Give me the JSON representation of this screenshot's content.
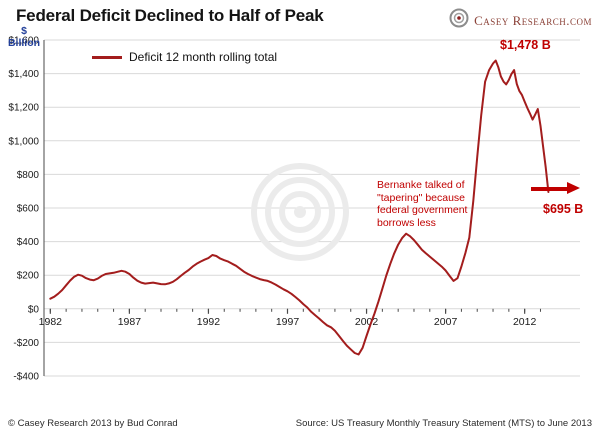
{
  "header": {
    "title": "Federal Deficit Declined to Half of Peak",
    "brand": "Casey Research.com"
  },
  "y_axis_unit": "$\nBillion",
  "legend": {
    "label": "Deficit 12 month rolling total"
  },
  "annotations": {
    "peak": "$1,478 B",
    "current": "$695 B",
    "note": "Bernanke talked of\n\"tapering\" because\nfederal government\nborrows less"
  },
  "footer": {
    "left": "© Casey Research 2013 by Bud Conrad",
    "right": "Source: US Treasury Monthly Treasury Statement (MTS) to June 2013"
  },
  "colors": {
    "line": "#a31d1d",
    "annotation": "#c00000",
    "grid": "#d9d9d9",
    "axis": "#4a4a4a",
    "unit": "#23409a",
    "brand": "#8b4238",
    "watermark": "#ebebeb"
  },
  "chart_data": {
    "type": "line",
    "title": "Federal Deficit Declined to Half of Peak",
    "series_name": "Deficit 12 month rolling total",
    "ylabel": "$ Billion",
    "xlabel": "",
    "xlim": [
      1981.6,
      2015.5
    ],
    "ylim": [
      -400,
      1600
    ],
    "grid": "horizontal",
    "legend_position": "top-left-inside",
    "y_ticks": [
      {
        "v": 1600,
        "label": "$1,600"
      },
      {
        "v": 1400,
        "label": "$1,400"
      },
      {
        "v": 1200,
        "label": "$1,200"
      },
      {
        "v": 1000,
        "label": "$1,000"
      },
      {
        "v": 800,
        "label": "$800"
      },
      {
        "v": 600,
        "label": "$600"
      },
      {
        "v": 400,
        "label": "$400"
      },
      {
        "v": 200,
        "label": "$200"
      },
      {
        "v": 0,
        "label": "$0"
      },
      {
        "v": -200,
        "label": "-$200"
      },
      {
        "v": -400,
        "label": "-$400"
      }
    ],
    "x_ticks": [
      {
        "v": 1982,
        "label": "1982"
      },
      {
        "v": 1987,
        "label": "1987"
      },
      {
        "v": 1992,
        "label": "1992"
      },
      {
        "v": 1997,
        "label": "1997"
      },
      {
        "v": 2002,
        "label": "2002"
      },
      {
        "v": 2007,
        "label": "2007"
      },
      {
        "v": 2012,
        "label": "2012"
      }
    ],
    "peak_point": {
      "x": 2010.17,
      "value": 1478
    },
    "last_point": {
      "x": 2013.5,
      "value": 695
    },
    "points": [
      [
        1982,
        60
      ],
      [
        1982.25,
        72
      ],
      [
        1982.5,
        90
      ],
      [
        1982.75,
        112
      ],
      [
        1983,
        140
      ],
      [
        1983.25,
        168
      ],
      [
        1983.5,
        190
      ],
      [
        1983.75,
        203
      ],
      [
        1984,
        197
      ],
      [
        1984.25,
        183
      ],
      [
        1984.5,
        174
      ],
      [
        1984.75,
        170
      ],
      [
        1985,
        180
      ],
      [
        1985.25,
        196
      ],
      [
        1985.5,
        207
      ],
      [
        1985.75,
        211
      ],
      [
        1986,
        214
      ],
      [
        1986.25,
        220
      ],
      [
        1986.5,
        226
      ],
      [
        1986.75,
        221
      ],
      [
        1987,
        207
      ],
      [
        1987.25,
        186
      ],
      [
        1987.5,
        167
      ],
      [
        1987.75,
        156
      ],
      [
        1988,
        150
      ],
      [
        1988.25,
        153
      ],
      [
        1988.5,
        156
      ],
      [
        1988.75,
        151
      ],
      [
        1989,
        147
      ],
      [
        1989.25,
        146
      ],
      [
        1989.5,
        151
      ],
      [
        1989.75,
        161
      ],
      [
        1990,
        176
      ],
      [
        1990.25,
        196
      ],
      [
        1990.5,
        214
      ],
      [
        1990.75,
        231
      ],
      [
        1991,
        251
      ],
      [
        1991.25,
        268
      ],
      [
        1991.5,
        281
      ],
      [
        1991.75,
        292
      ],
      [
        1992,
        302
      ],
      [
        1992.25,
        320
      ],
      [
        1992.5,
        314
      ],
      [
        1992.75,
        299
      ],
      [
        1993,
        289
      ],
      [
        1993.25,
        281
      ],
      [
        1993.5,
        268
      ],
      [
        1993.75,
        256
      ],
      [
        1994,
        238
      ],
      [
        1994.25,
        221
      ],
      [
        1994.5,
        207
      ],
      [
        1994.75,
        196
      ],
      [
        1995,
        186
      ],
      [
        1995.25,
        177
      ],
      [
        1995.5,
        171
      ],
      [
        1995.75,
        166
      ],
      [
        1996,
        156
      ],
      [
        1996.25,
        144
      ],
      [
        1996.5,
        130
      ],
      [
        1996.75,
        116
      ],
      [
        1997,
        104
      ],
      [
        1997.25,
        89
      ],
      [
        1997.5,
        70
      ],
      [
        1997.75,
        50
      ],
      [
        1998,
        28
      ],
      [
        1998.25,
        8
      ],
      [
        1998.5,
        -18
      ],
      [
        1998.75,
        -38
      ],
      [
        1999,
        -58
      ],
      [
        1999.25,
        -79
      ],
      [
        1999.5,
        -98
      ],
      [
        1999.75,
        -110
      ],
      [
        2000,
        -131
      ],
      [
        2000.25,
        -160
      ],
      [
        2000.5,
        -190
      ],
      [
        2000.75,
        -219
      ],
      [
        2001,
        -241
      ],
      [
        2001.25,
        -263
      ],
      [
        2001.5,
        -272
      ],
      [
        2001.75,
        -232
      ],
      [
        2002,
        -162
      ],
      [
        2002.25,
        -92
      ],
      [
        2002.5,
        -28
      ],
      [
        2002.75,
        42
      ],
      [
        2003,
        120
      ],
      [
        2003.25,
        198
      ],
      [
        2003.5,
        268
      ],
      [
        2003.75,
        330
      ],
      [
        2004,
        382
      ],
      [
        2004.25,
        421
      ],
      [
        2004.5,
        447
      ],
      [
        2004.75,
        432
      ],
      [
        2005,
        409
      ],
      [
        2005.25,
        381
      ],
      [
        2005.5,
        352
      ],
      [
        2005.75,
        331
      ],
      [
        2006,
        311
      ],
      [
        2006.25,
        291
      ],
      [
        2006.5,
        271
      ],
      [
        2006.75,
        251
      ],
      [
        2007,
        228
      ],
      [
        2007.25,
        196
      ],
      [
        2007.5,
        166
      ],
      [
        2007.75,
        182
      ],
      [
        2008,
        252
      ],
      [
        2008.25,
        332
      ],
      [
        2008.5,
        424
      ],
      [
        2008.75,
        642
      ],
      [
        2009,
        902
      ],
      [
        2009.25,
        1152
      ],
      [
        2009.5,
        1352
      ],
      [
        2009.75,
        1421
      ],
      [
        2010,
        1460
      ],
      [
        2010.17,
        1478
      ],
      [
        2010.33,
        1438
      ],
      [
        2010.5,
        1383
      ],
      [
        2010.67,
        1352
      ],
      [
        2010.83,
        1336
      ],
      [
        2011,
        1362
      ],
      [
        2011.17,
        1398
      ],
      [
        2011.33,
        1421
      ],
      [
        2011.5,
        1338
      ],
      [
        2011.67,
        1296
      ],
      [
        2011.83,
        1272
      ],
      [
        2012,
        1232
      ],
      [
        2012.17,
        1196
      ],
      [
        2012.33,
        1163
      ],
      [
        2012.5,
        1126
      ],
      [
        2012.67,
        1158
      ],
      [
        2012.83,
        1189
      ],
      [
        2013,
        1089
      ],
      [
        2013.17,
        961
      ],
      [
        2013.33,
        842
      ],
      [
        2013.5,
        695
      ]
    ]
  }
}
